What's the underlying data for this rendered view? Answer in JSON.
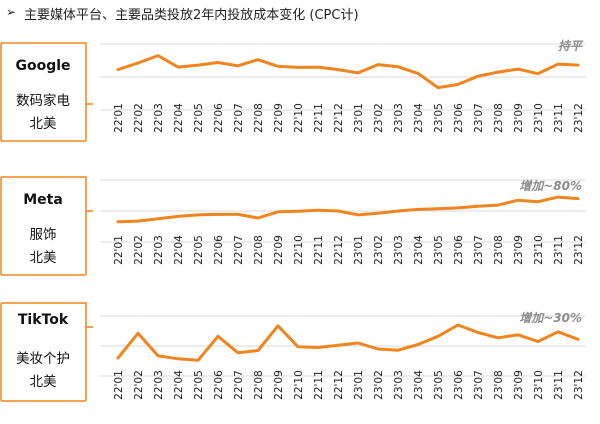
{
  "heading": {
    "arrow": "➢",
    "text": "主要媒体平台、主要品类投放2年内投放成本变化 (CPC计)"
  },
  "panels": [
    {
      "platform": "Google",
      "category": "数码家电",
      "region": "北美",
      "annotation": "持平"
    },
    {
      "platform": "Meta",
      "category": "服饰",
      "region": "北美",
      "annotation": "增加~80%"
    },
    {
      "platform": "TikTok",
      "category": "美妆个护",
      "region": "北美",
      "annotation": "增加~30%"
    }
  ],
  "colors": {
    "accent": "#f0841e",
    "grid": "#d9d9d9",
    "label_border": "#f0841e",
    "annotation": "#8c8c8c"
  },
  "chart_data": [
    {
      "type": "line",
      "title": "",
      "x": [
        "22'01",
        "22'02",
        "22'03",
        "22'04",
        "22'05",
        "22'06",
        "22'07",
        "22'08",
        "22'09",
        "22'10",
        "22'11",
        "22'12",
        "23'01",
        "23'02",
        "23'03",
        "23'04",
        "23'05",
        "23'06",
        "23'07",
        "23'08",
        "23'09",
        "23'10",
        "23'11",
        "23'12"
      ],
      "ylim": [
        0,
        4
      ],
      "grid": true,
      "series": [
        {
          "values": [
            2.45,
            2.85,
            3.3,
            2.6,
            2.72,
            2.88,
            2.68,
            3.05,
            2.65,
            2.58,
            2.6,
            2.45,
            2.25,
            2.75,
            2.62,
            2.22,
            1.35,
            1.55,
            2.05,
            2.3,
            2.48,
            2.2,
            2.78,
            2.72
          ]
        }
      ]
    },
    {
      "type": "line",
      "title": "",
      "x": [
        "22'01",
        "22'02",
        "22'03",
        "22'04",
        "22'05",
        "22'06",
        "22'07",
        "22'08",
        "22'09",
        "22'10",
        "22'11",
        "22'12",
        "23'01",
        "23'02",
        "23'03",
        "23'04",
        "23'05",
        "23'06",
        "23'07",
        "23'08",
        "23'09",
        "23'10",
        "23'11",
        "23'12"
      ],
      "ylim": [
        0,
        4
      ],
      "grid": true,
      "series": [
        {
          "values": [
            1.3,
            1.35,
            1.5,
            1.65,
            1.75,
            1.78,
            1.78,
            1.55,
            1.95,
            1.98,
            2.05,
            2.0,
            1.75,
            1.85,
            2.0,
            2.1,
            2.15,
            2.2,
            2.3,
            2.38,
            2.7,
            2.6,
            2.9,
            2.8
          ]
        }
      ]
    },
    {
      "type": "line",
      "title": "",
      "x": [
        "22'01",
        "22'02",
        "22'03",
        "22'04",
        "22'05",
        "22'06",
        "22'07",
        "22'08",
        "22'09",
        "22'10",
        "22'11",
        "22'12",
        "23'01",
        "23'02",
        "23'03",
        "23'04",
        "23'05",
        "23'06",
        "23'07",
        "23'08",
        "23'09",
        "23'10",
        "23'11",
        "23'12"
      ],
      "ylim": [
        0,
        4
      ],
      "grid": true,
      "series": [
        {
          "values": [
            1.2,
            2.85,
            1.35,
            1.15,
            1.05,
            2.65,
            1.55,
            1.7,
            3.35,
            1.95,
            1.9,
            2.05,
            2.2,
            1.8,
            1.72,
            2.1,
            2.65,
            3.4,
            2.9,
            2.55,
            2.75,
            2.3,
            2.95,
            2.45
          ]
        }
      ]
    }
  ]
}
